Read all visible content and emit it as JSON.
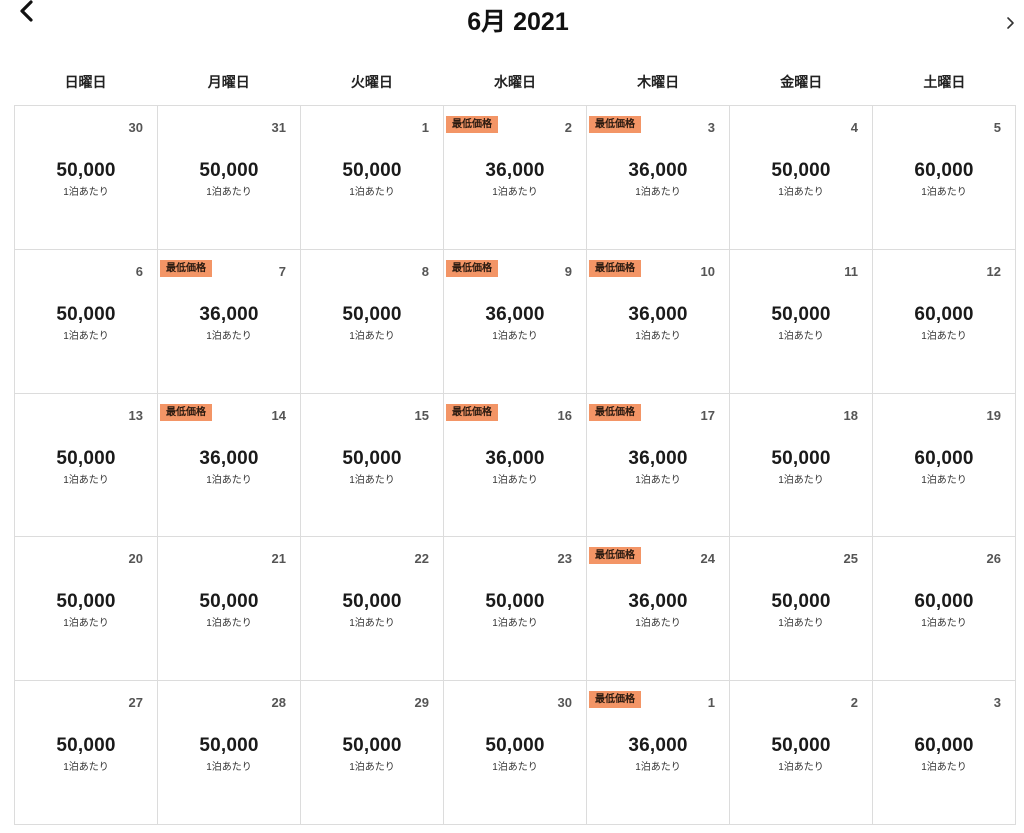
{
  "header": {
    "title": "6月 2021",
    "prev_icon": "chevron-left-icon",
    "next_icon": "chevron-right-icon"
  },
  "weekdays": [
    "日曜日",
    "月曜日",
    "火曜日",
    "水曜日",
    "木曜日",
    "金曜日",
    "土曜日"
  ],
  "labels": {
    "lowest_price": "最低価格",
    "per_night": "1泊あたり"
  },
  "colors": {
    "badge_bg": "#f39566",
    "grid_border": "#dcdcdc"
  },
  "days": [
    {
      "day": "30",
      "price": "50,000",
      "lowest": false
    },
    {
      "day": "31",
      "price": "50,000",
      "lowest": false
    },
    {
      "day": "1",
      "price": "50,000",
      "lowest": false
    },
    {
      "day": "2",
      "price": "36,000",
      "lowest": true
    },
    {
      "day": "3",
      "price": "36,000",
      "lowest": true
    },
    {
      "day": "4",
      "price": "50,000",
      "lowest": false
    },
    {
      "day": "5",
      "price": "60,000",
      "lowest": false
    },
    {
      "day": "6",
      "price": "50,000",
      "lowest": false
    },
    {
      "day": "7",
      "price": "36,000",
      "lowest": true
    },
    {
      "day": "8",
      "price": "50,000",
      "lowest": false
    },
    {
      "day": "9",
      "price": "36,000",
      "lowest": true
    },
    {
      "day": "10",
      "price": "36,000",
      "lowest": true
    },
    {
      "day": "11",
      "price": "50,000",
      "lowest": false
    },
    {
      "day": "12",
      "price": "60,000",
      "lowest": false
    },
    {
      "day": "13",
      "price": "50,000",
      "lowest": false
    },
    {
      "day": "14",
      "price": "36,000",
      "lowest": true
    },
    {
      "day": "15",
      "price": "50,000",
      "lowest": false
    },
    {
      "day": "16",
      "price": "36,000",
      "lowest": true
    },
    {
      "day": "17",
      "price": "36,000",
      "lowest": true
    },
    {
      "day": "18",
      "price": "50,000",
      "lowest": false
    },
    {
      "day": "19",
      "price": "60,000",
      "lowest": false
    },
    {
      "day": "20",
      "price": "50,000",
      "lowest": false
    },
    {
      "day": "21",
      "price": "50,000",
      "lowest": false
    },
    {
      "day": "22",
      "price": "50,000",
      "lowest": false
    },
    {
      "day": "23",
      "price": "50,000",
      "lowest": false
    },
    {
      "day": "24",
      "price": "36,000",
      "lowest": true
    },
    {
      "day": "25",
      "price": "50,000",
      "lowest": false
    },
    {
      "day": "26",
      "price": "60,000",
      "lowest": false
    },
    {
      "day": "27",
      "price": "50,000",
      "lowest": false
    },
    {
      "day": "28",
      "price": "50,000",
      "lowest": false
    },
    {
      "day": "29",
      "price": "50,000",
      "lowest": false
    },
    {
      "day": "30",
      "price": "50,000",
      "lowest": false
    },
    {
      "day": "1",
      "price": "36,000",
      "lowest": true
    },
    {
      "day": "2",
      "price": "50,000",
      "lowest": false
    },
    {
      "day": "3",
      "price": "60,000",
      "lowest": false
    }
  ]
}
